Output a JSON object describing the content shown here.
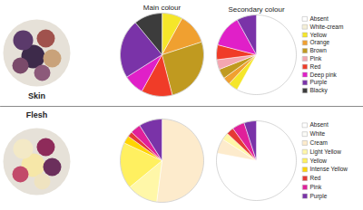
{
  "chart_data": [
    {
      "type": "pie",
      "title": "Main colour",
      "categories": [
        "Absent",
        "White-cream",
        "Yellow",
        "Orange",
        "Brown",
        "Pink",
        "Red",
        "Deep pink",
        "Purple",
        "Blacky"
      ],
      "values": [
        0,
        0,
        8,
        12,
        26,
        0,
        12,
        8,
        23,
        11
      ],
      "colors": [
        "#ffffff",
        "#f5efd6",
        "#f5e62a",
        "#f0a030",
        "#c09a20",
        "#f4a6b0",
        "#f03c28",
        "#e020c8",
        "#7a33a8",
        "#3c3c3c"
      ]
    },
    {
      "type": "pie",
      "title": "Secondary colour",
      "categories": [
        "Absent",
        "White-cream",
        "Yellow",
        "Orange",
        "Brown",
        "Pink",
        "Red",
        "Deep pink",
        "Purple",
        "Blacky"
      ],
      "values": [
        58,
        0,
        4,
        3,
        4,
        4,
        6,
        13,
        8,
        0
      ],
      "colors": [
        "#ffffff",
        "#f5efd6",
        "#f5e62a",
        "#f0a030",
        "#c09a20",
        "#f4a6b0",
        "#f03c28",
        "#e020c8",
        "#7a33a8",
        "#3c3c3c"
      ],
      "legend": "right"
    },
    {
      "type": "pie",
      "categories": [
        "Absent",
        "White",
        "Cream",
        "Light Yellow",
        "Yellow",
        "Intense Yellow",
        "Red",
        "Pink",
        "Purple"
      ],
      "values": [
        0,
        0,
        52,
        12,
        18,
        3,
        2,
        4,
        9
      ],
      "colors": [
        "#ffffff",
        "#fbfbf7",
        "#fdebcc",
        "#fff7a8",
        "#fff060",
        "#ffd400",
        "#e53935",
        "#e0209a",
        "#7a33a8"
      ]
    },
    {
      "type": "pie",
      "categories": [
        "Absent",
        "White",
        "Cream",
        "Light Yellow",
        "Yellow",
        "Intense Yellow",
        "Red",
        "Pink",
        "Purple"
      ],
      "values": [
        78,
        0,
        6,
        3,
        0,
        0,
        3,
        5,
        5
      ],
      "colors": [
        "#ffffff",
        "#fbfbf7",
        "#fdebcc",
        "#fff7a8",
        "#fff060",
        "#ffd400",
        "#e53935",
        "#e0209a",
        "#7a33a8"
      ],
      "legend": "right"
    }
  ],
  "row_labels": [
    "Skin",
    "Flesh"
  ]
}
